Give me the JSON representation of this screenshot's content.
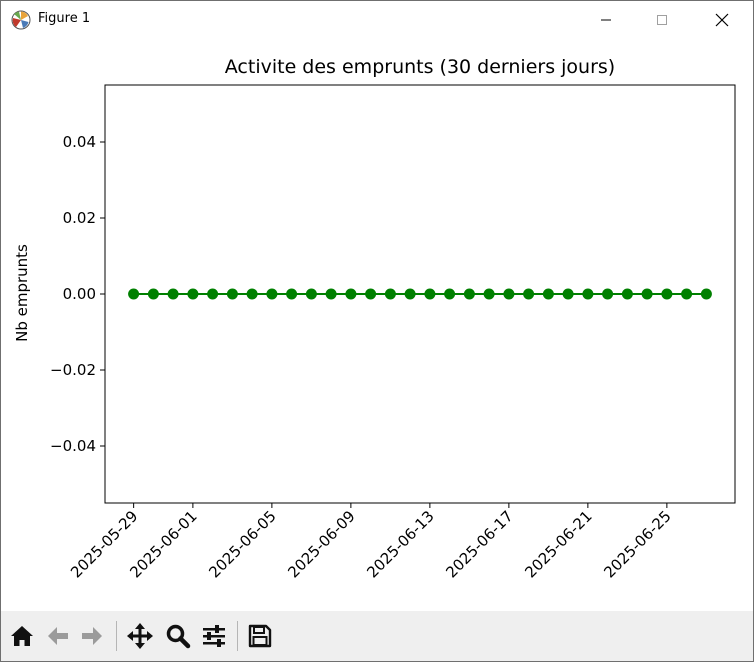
{
  "window": {
    "title": "Figure 1",
    "controls": [
      "minimize",
      "maximize",
      "close"
    ]
  },
  "toolbar": {
    "tools": [
      {
        "name": "home-icon",
        "tooltip": "Home"
      },
      {
        "name": "back-arrow-icon",
        "tooltip": "Back"
      },
      {
        "name": "forward-arrow-icon",
        "tooltip": "Forward"
      },
      {
        "name": "pan-icon",
        "tooltip": "Pan"
      },
      {
        "name": "zoom-icon",
        "tooltip": "Zoom"
      },
      {
        "name": "configure-subplots-icon",
        "tooltip": "Subplots"
      },
      {
        "name": "save-icon",
        "tooltip": "Save"
      }
    ]
  },
  "colors": {
    "series": "#008000",
    "axes": "#000000",
    "toolbar_bg": "#efefef"
  },
  "chart_data": {
    "type": "line",
    "title": "Activite des emprunts (30 derniers jours)",
    "xlabel": "",
    "ylabel": "Nb emprunts",
    "x": [
      "2025-05-29",
      "2025-05-30",
      "2025-05-31",
      "2025-06-01",
      "2025-06-02",
      "2025-06-03",
      "2025-06-04",
      "2025-06-05",
      "2025-06-06",
      "2025-06-07",
      "2025-06-08",
      "2025-06-09",
      "2025-06-10",
      "2025-06-11",
      "2025-06-12",
      "2025-06-13",
      "2025-06-14",
      "2025-06-15",
      "2025-06-16",
      "2025-06-17",
      "2025-06-18",
      "2025-06-19",
      "2025-06-20",
      "2025-06-21",
      "2025-06-22",
      "2025-06-23",
      "2025-06-24",
      "2025-06-25",
      "2025-06-26",
      "2025-06-27"
    ],
    "values": [
      0,
      0,
      0,
      0,
      0,
      0,
      0,
      0,
      0,
      0,
      0,
      0,
      0,
      0,
      0,
      0,
      0,
      0,
      0,
      0,
      0,
      0,
      0,
      0,
      0,
      0,
      0,
      0,
      0,
      0
    ],
    "marker": "circle",
    "xticks": [
      "2025-05-29",
      "2025-06-01",
      "2025-06-05",
      "2025-06-09",
      "2025-06-13",
      "2025-06-17",
      "2025-06-21",
      "2025-06-25"
    ],
    "yticks": [
      -0.04,
      -0.02,
      0.0,
      0.02,
      0.04
    ],
    "ytick_labels": [
      "−0.04",
      "−0.02",
      "0.00",
      "0.02",
      "0.04"
    ],
    "ylim": [
      -0.055,
      0.055
    ],
    "grid": false,
    "legend": "none"
  }
}
